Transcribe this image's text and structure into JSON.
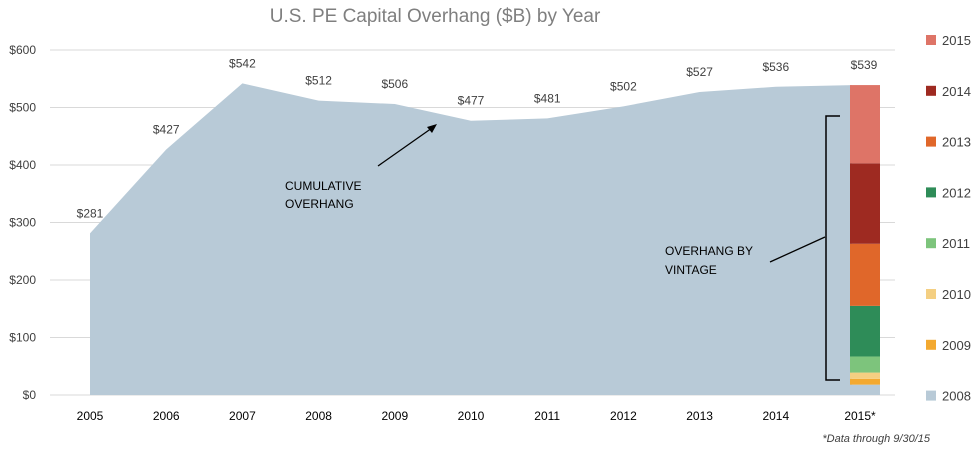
{
  "chart_data": {
    "type": "area",
    "title": "U.S. PE Capital Overhang ($B) by Year",
    "categories": [
      "2005",
      "2006",
      "2007",
      "2008",
      "2009",
      "2010",
      "2011",
      "2012",
      "2013",
      "2014",
      "2015*"
    ],
    "series": [
      {
        "name": "Cumulative Overhang",
        "values": [
          281,
          427,
          542,
          512,
          506,
          477,
          481,
          502,
          527,
          536,
          539
        ],
        "labels": [
          "$281",
          "$427",
          "$542",
          "$512",
          "$506",
          "$477",
          "$481",
          "$502",
          "$527",
          "$536",
          "$539"
        ]
      }
    ],
    "stacked_bar": {
      "category": "2015*",
      "segments": [
        {
          "name": "2008",
          "value": 18,
          "color": "#b8cad7"
        },
        {
          "name": "2009",
          "value": 10,
          "color": "#f3a930"
        },
        {
          "name": "2010",
          "value": 11,
          "color": "#f4cf82"
        },
        {
          "name": "2011",
          "value": 28,
          "color": "#7dc47c"
        },
        {
          "name": "2012",
          "value": 88,
          "color": "#2e8c58"
        },
        {
          "name": "2013",
          "value": 108,
          "color": "#e0672a"
        },
        {
          "name": "2014",
          "value": 140,
          "color": "#9e2a21"
        },
        {
          "name": "2015",
          "value": 136,
          "color": "#de7467"
        }
      ]
    },
    "legend": {
      "placement": "right",
      "items": [
        {
          "label": "2015",
          "color": "#de7467"
        },
        {
          "label": "2014",
          "color": "#9e2a21"
        },
        {
          "label": "2013",
          "color": "#e0672a"
        },
        {
          "label": "2012",
          "color": "#2e8c58"
        },
        {
          "label": "2011",
          "color": "#7dc47c"
        },
        {
          "label": "2010",
          "color": "#f4cf82"
        },
        {
          "label": "2009",
          "color": "#f3a930"
        },
        {
          "label": "2008",
          "color": "#b8cad7"
        }
      ]
    },
    "ylim": [
      0,
      600
    ],
    "yticks": [
      0,
      100,
      200,
      300,
      400,
      500,
      600
    ],
    "ytick_labels": [
      "$0",
      "$100",
      "$200",
      "$300",
      "$400",
      "$500",
      "$600"
    ],
    "grid": true,
    "annotations": {
      "cumulative": [
        "CUMULATIVE",
        "OVERHANG"
      ],
      "vintage": [
        "OVERHANG  BY",
        "VINTAGE"
      ]
    },
    "footnote": "*Data through 9/30/15"
  }
}
